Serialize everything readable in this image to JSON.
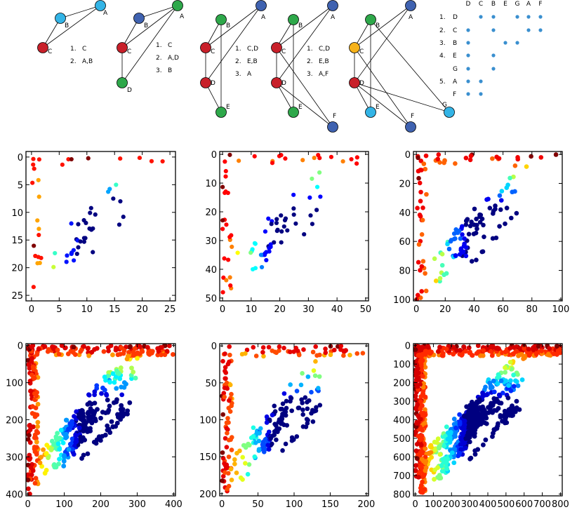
{
  "colors": {
    "red": "#c8202a",
    "blue_node": "#3f62b0",
    "light_blue": "#33b4e6",
    "green": "#2ea84a",
    "yellow": "#f6b21a",
    "matrix_dot": "#3a8fcf"
  },
  "graphs": [
    {
      "nodes": [
        {
          "id": "A",
          "color": "light_blue"
        },
        {
          "id": "B",
          "color": "light_blue"
        },
        {
          "id": "C",
          "color": "red"
        }
      ],
      "edges": [
        [
          "A",
          "B"
        ],
        [
          "B",
          "C"
        ],
        [
          "A",
          "C"
        ]
      ],
      "ordering": [
        {
          "num": "1.",
          "label": "C"
        },
        {
          "num": "2.",
          "label": "A,B"
        }
      ]
    },
    {
      "nodes": [
        {
          "id": "A",
          "color": "green"
        },
        {
          "id": "B",
          "color": "blue_node"
        },
        {
          "id": "C",
          "color": "red"
        },
        {
          "id": "D",
          "color": "green"
        }
      ],
      "edges": [
        [
          "A",
          "B"
        ],
        [
          "B",
          "C"
        ],
        [
          "A",
          "C"
        ],
        [
          "A",
          "D"
        ],
        [
          "C",
          "D"
        ]
      ],
      "ordering": [
        {
          "num": "1.",
          "label": "C"
        },
        {
          "num": "2.",
          "label": "A,D"
        },
        {
          "num": "3.",
          "label": "B"
        }
      ]
    },
    {
      "nodes": [
        {
          "id": "A",
          "color": "blue_node"
        },
        {
          "id": "B",
          "color": "green"
        },
        {
          "id": "C",
          "color": "red"
        },
        {
          "id": "D",
          "color": "red"
        },
        {
          "id": "E",
          "color": "green"
        }
      ],
      "edges": [
        [
          "A",
          "C"
        ],
        [
          "B",
          "C"
        ],
        [
          "A",
          "D"
        ],
        [
          "C",
          "D"
        ],
        [
          "B",
          "E"
        ],
        [
          "D",
          "E"
        ]
      ],
      "ordering": [
        {
          "num": "1.",
          "label": "C,D"
        },
        {
          "num": "2.",
          "label": "E,B"
        },
        {
          "num": "3.",
          "label": "A"
        }
      ]
    },
    {
      "nodes": [
        {
          "id": "A",
          "color": "blue_node"
        },
        {
          "id": "B",
          "color": "green"
        },
        {
          "id": "C",
          "color": "red"
        },
        {
          "id": "D",
          "color": "red"
        },
        {
          "id": "E",
          "color": "green"
        },
        {
          "id": "F",
          "color": "blue_node"
        }
      ],
      "edges": [
        [
          "A",
          "C"
        ],
        [
          "B",
          "C"
        ],
        [
          "A",
          "D"
        ],
        [
          "C",
          "D"
        ],
        [
          "B",
          "E"
        ],
        [
          "D",
          "E"
        ],
        [
          "C",
          "F"
        ],
        [
          "D",
          "F"
        ]
      ],
      "ordering": [
        {
          "num": "1.",
          "label": "C,D"
        },
        {
          "num": "2.",
          "label": "E,B"
        },
        {
          "num": "3.",
          "label": "A,F"
        }
      ]
    },
    {
      "nodes": [
        {
          "id": "A",
          "color": "blue_node"
        },
        {
          "id": "B",
          "color": "green"
        },
        {
          "id": "C",
          "color": "yellow"
        },
        {
          "id": "D",
          "color": "red"
        },
        {
          "id": "E",
          "color": "light_blue"
        },
        {
          "id": "F",
          "color": "blue_node"
        },
        {
          "id": "G",
          "color": "light_blue"
        }
      ],
      "edges": [
        [
          "A",
          "C"
        ],
        [
          "B",
          "C"
        ],
        [
          "A",
          "D"
        ],
        [
          "C",
          "D"
        ],
        [
          "B",
          "E"
        ],
        [
          "D",
          "E"
        ],
        [
          "C",
          "F"
        ],
        [
          "D",
          "F"
        ],
        [
          "B",
          "G"
        ],
        [
          "D",
          "G"
        ]
      ],
      "ordering": []
    }
  ],
  "matrix": {
    "columns": [
      "D",
      "C",
      "B",
      "E",
      "G",
      "A",
      "F"
    ],
    "rows": [
      {
        "num": "1.",
        "label": "D",
        "cells": [
          1,
          2,
          4,
          5,
          6
        ]
      },
      {
        "num": "2.",
        "label": "C",
        "cells": [
          0,
          2,
          5,
          6
        ]
      },
      {
        "num": "3.",
        "label": "B",
        "cells": [
          0,
          3,
          4
        ]
      },
      {
        "num": "4.",
        "label": "E",
        "cells": [
          0,
          2
        ]
      },
      {
        "num": "",
        "label": "G",
        "cells": [
          0,
          2
        ]
      },
      {
        "num": "5.",
        "label": "A",
        "cells": [
          0,
          1
        ]
      },
      {
        "num": "",
        "label": "F",
        "cells": [
          0,
          1
        ]
      }
    ]
  },
  "chart_data": [
    {
      "type": "scatter",
      "n": 25,
      "xlim": [
        -1,
        26
      ],
      "ylim": [
        26,
        -1
      ],
      "xticks": [
        0,
        5,
        10,
        15,
        20,
        25
      ],
      "yticks": [
        0,
        5,
        10,
        15,
        20,
        25
      ]
    },
    {
      "type": "scatter",
      "n": 50,
      "xlim": [
        -1,
        51
      ],
      "ylim": [
        51,
        -1
      ],
      "xticks": [
        0,
        10,
        20,
        30,
        40,
        50
      ],
      "yticks": [
        0,
        10,
        20,
        30,
        40,
        50
      ]
    },
    {
      "type": "scatter",
      "n": 100,
      "xlim": [
        -2,
        101
      ],
      "ylim": [
        101,
        -2
      ],
      "xticks": [
        0,
        20,
        40,
        60,
        80,
        100
      ],
      "yticks": [
        0,
        20,
        40,
        60,
        80,
        100
      ]
    },
    {
      "type": "scatter",
      "n": 400,
      "xlim": [
        -5,
        405
      ],
      "ylim": [
        405,
        -5
      ],
      "xticks": [
        0,
        100,
        200,
        300,
        400
      ],
      "yticks": [
        0,
        100,
        200,
        300,
        400
      ]
    },
    {
      "type": "scatter",
      "n": 200,
      "xlim": [
        -3,
        203
      ],
      "ylim": [
        203,
        -3
      ],
      "xticks": [
        0,
        50,
        100,
        150,
        200
      ],
      "yticks": [
        0,
        50,
        100,
        150,
        200
      ]
    },
    {
      "type": "scatter",
      "n": 800,
      "xlim": [
        -10,
        810
      ],
      "ylim": [
        810,
        -10
      ],
      "xticks": [
        0,
        100,
        200,
        300,
        400,
        500,
        600,
        700,
        800
      ],
      "yticks": [
        0,
        100,
        200,
        300,
        400,
        500,
        600,
        700,
        800
      ]
    }
  ]
}
